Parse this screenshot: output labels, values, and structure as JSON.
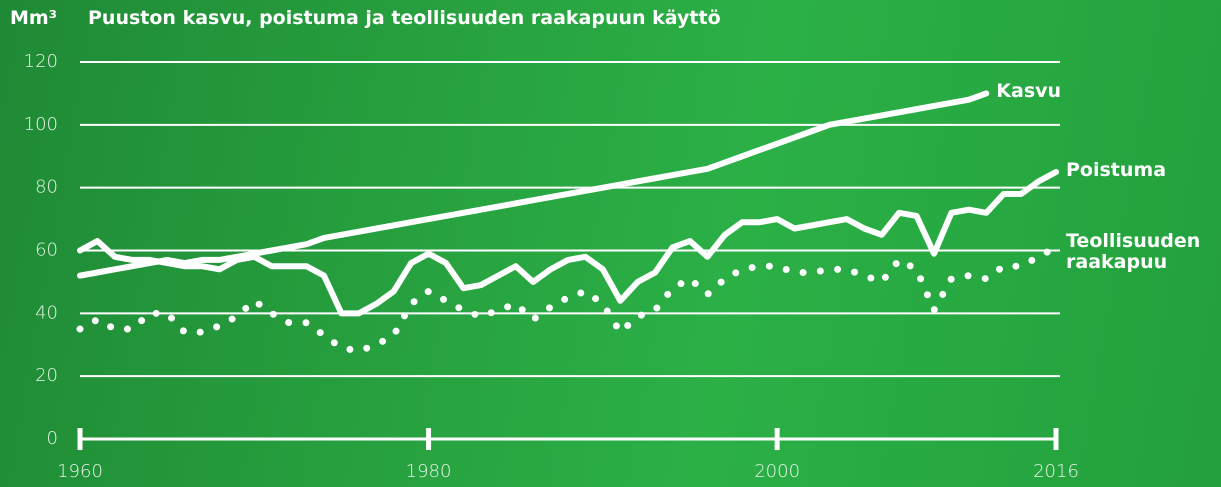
{
  "chart_data": {
    "type": "line",
    "title": "Puuston kasvu, poistuma ja teollisuuden raakapuun käyttö",
    "y_unit": "Mm³",
    "x": [
      1960,
      1961,
      1962,
      1963,
      1964,
      1965,
      1966,
      1967,
      1968,
      1969,
      1970,
      1971,
      1972,
      1973,
      1974,
      1975,
      1976,
      1977,
      1978,
      1979,
      1980,
      1981,
      1982,
      1983,
      1984,
      1985,
      1986,
      1987,
      1988,
      1989,
      1990,
      1991,
      1992,
      1993,
      1994,
      1995,
      1996,
      1997,
      1998,
      1999,
      2000,
      2001,
      2002,
      2003,
      2004,
      2005,
      2006,
      2007,
      2008,
      2009,
      2010,
      2011,
      2012,
      2013,
      2014,
      2015,
      2016
    ],
    "series": [
      {
        "name": "Kasvu",
        "color": "#ffffff",
        "style": "solid",
        "values": [
          52,
          53,
          54,
          55,
          56,
          57,
          56,
          57,
          57,
          58,
          59,
          60,
          61,
          62,
          64,
          65,
          66,
          67,
          68,
          69,
          70,
          71,
          72,
          73,
          74,
          75,
          76,
          77,
          78,
          79,
          80,
          81,
          82,
          83,
          84,
          85,
          86,
          88,
          90,
          92,
          94,
          96,
          98,
          100,
          101,
          102,
          103,
          104,
          105,
          106,
          107,
          108,
          110,
          null,
          null,
          null,
          null
        ]
      },
      {
        "name": "Poistuma",
        "color": "#ffffff",
        "style": "solid",
        "values": [
          60,
          63,
          58,
          57,
          57,
          56,
          55,
          55,
          54,
          57,
          58,
          55,
          55,
          55,
          52,
          40,
          40,
          43,
          47,
          56,
          59,
          56,
          48,
          49,
          52,
          55,
          50,
          54,
          57,
          58,
          54,
          44,
          50,
          53,
          61,
          63,
          58,
          65,
          69,
          69,
          70,
          67,
          68,
          69,
          70,
          67,
          65,
          72,
          71,
          59,
          72,
          73,
          72,
          78,
          78,
          82,
          85
        ]
      },
      {
        "name": "Teollisuuden raakapuu",
        "color": "#ffffff",
        "style": "dotted",
        "values": [
          35,
          38,
          35,
          35,
          40,
          40,
          34,
          34,
          36,
          39,
          44,
          40,
          37,
          37,
          33,
          29,
          28,
          30,
          33,
          43,
          47,
          44,
          41,
          39,
          41,
          43,
          38,
          42,
          45,
          47,
          43,
          34,
          39,
          41,
          48,
          51,
          46,
          51,
          54,
          55,
          55,
          53,
          53,
          54,
          54,
          52,
          50,
          57,
          54,
          41,
          51,
          52,
          51,
          55,
          55,
          58,
          61
        ]
      }
    ],
    "xlim": [
      1960,
      2016
    ],
    "xticks": [
      1960,
      1980,
      2000,
      2016
    ],
    "ylim": [
      0,
      120
    ],
    "yticks": [
      0,
      20,
      40,
      60,
      80,
      100,
      120
    ],
    "grid": true
  }
}
